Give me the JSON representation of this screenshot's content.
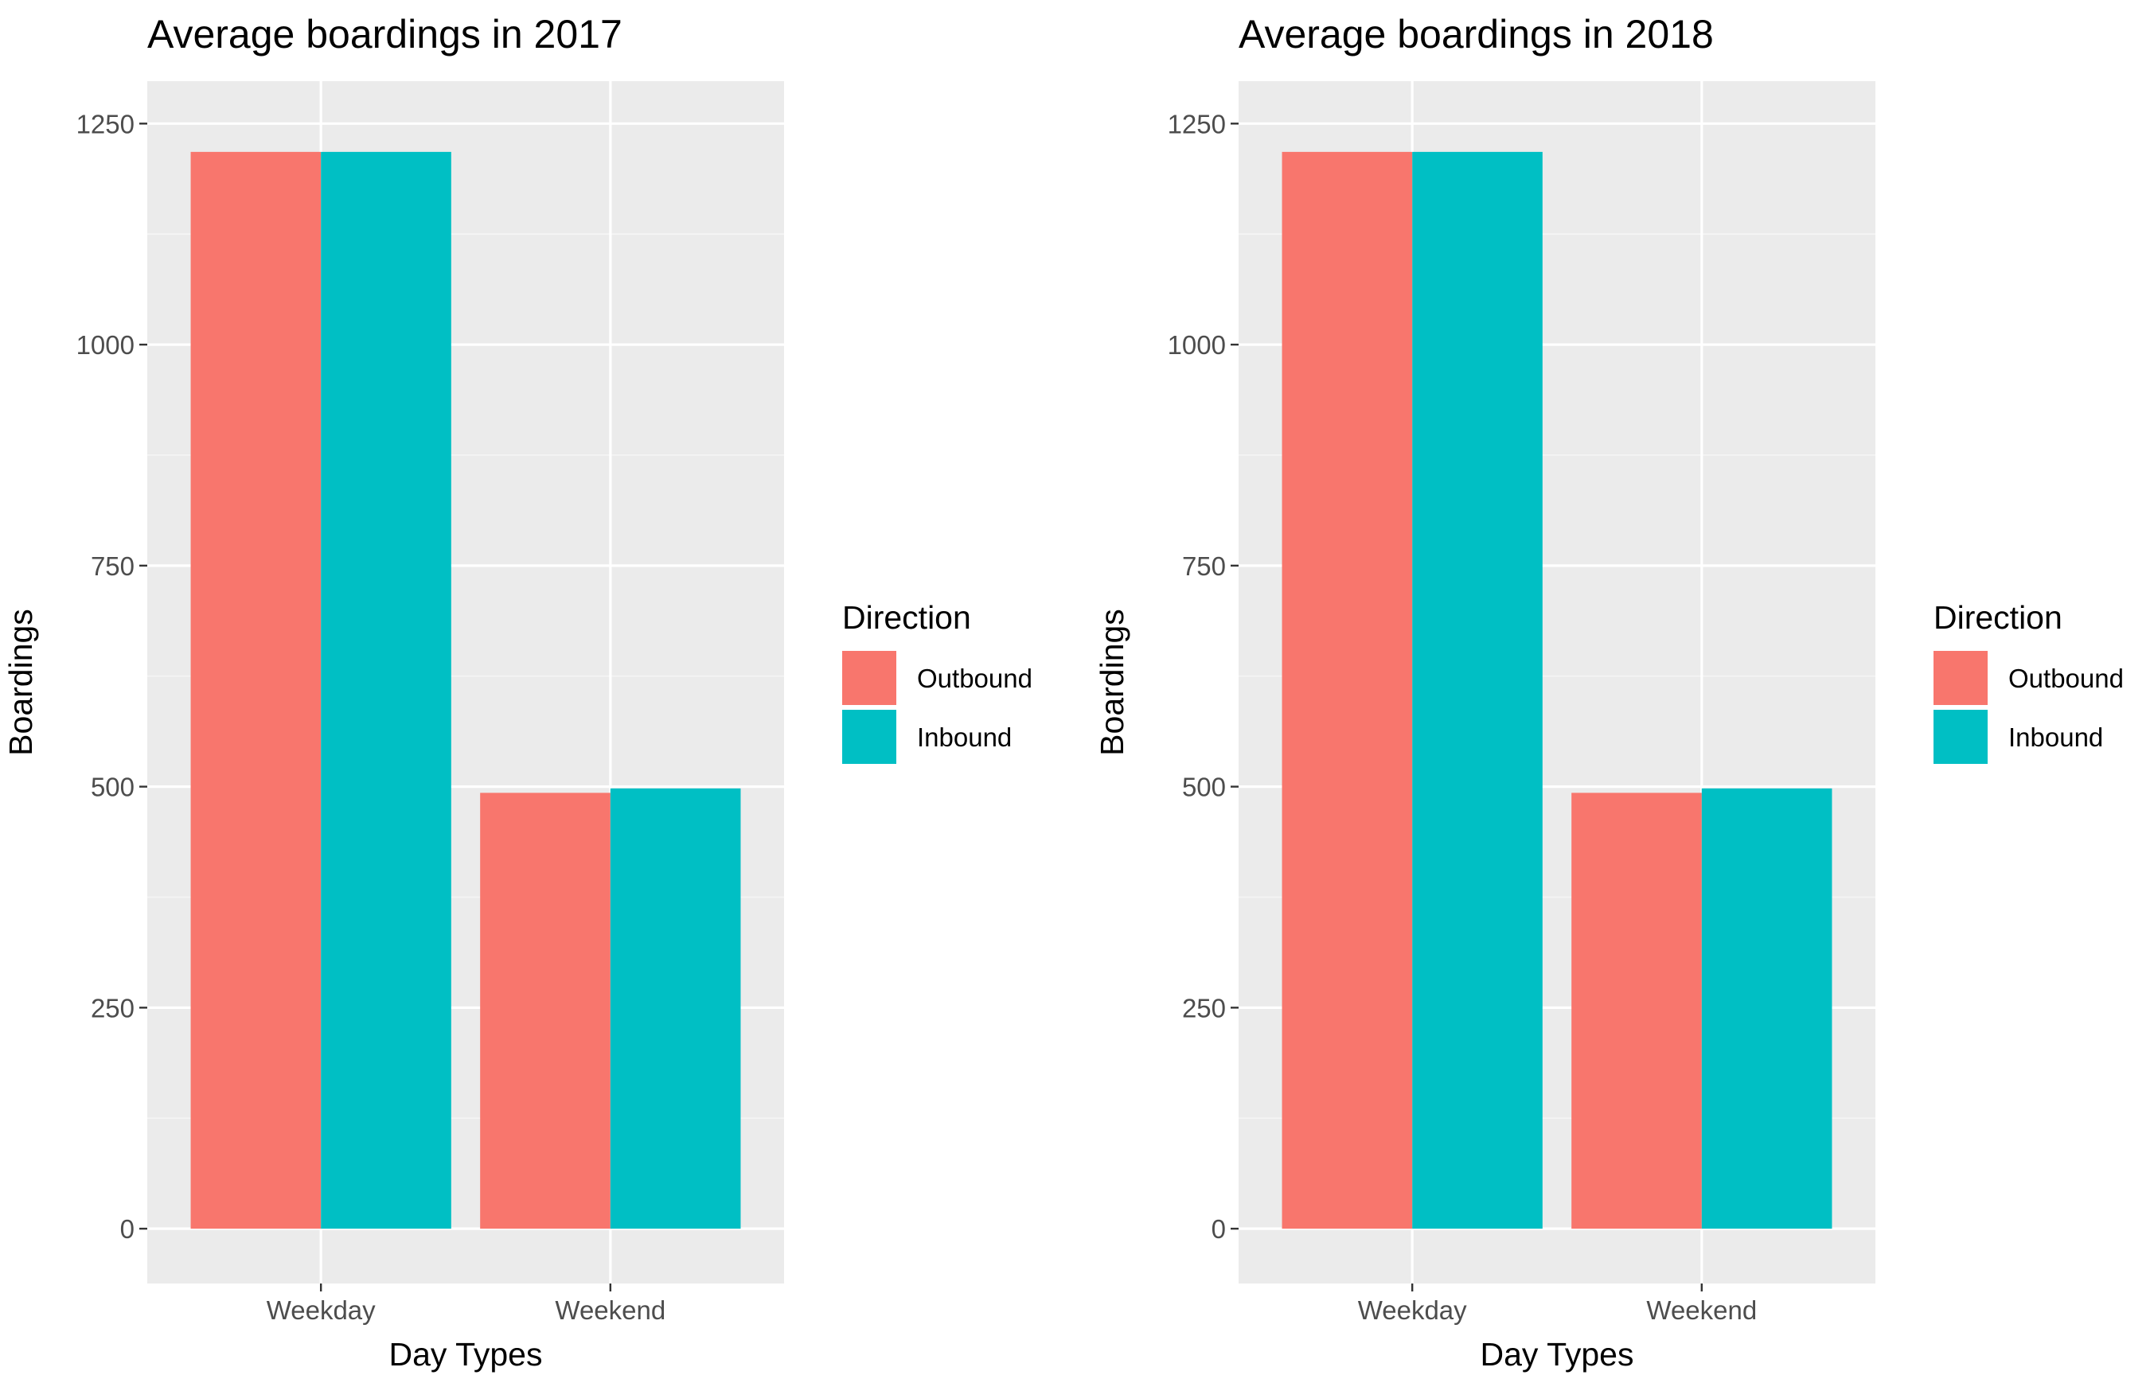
{
  "chart_data": [
    {
      "type": "bar",
      "title": "Average boardings in 2017",
      "xlabel": "Day Types",
      "ylabel": "Boardings",
      "categories": [
        "Weekday",
        "Weekend"
      ],
      "series": [
        {
          "name": "Outbound",
          "values": [
            1218,
            493
          ],
          "color": "#F8766D"
        },
        {
          "name": "Inbound",
          "values": [
            1218,
            498
          ],
          "color": "#00BFC4"
        }
      ],
      "ylim": [
        -62,
        1298
      ],
      "yticks": [
        0,
        250,
        500,
        750,
        1000,
        1250
      ],
      "ytick_labels": [
        "0",
        "250",
        "500",
        "750",
        "1000",
        "1250"
      ],
      "grid": true,
      "legend": {
        "title": "Direction",
        "position": "right"
      }
    },
    {
      "type": "bar",
      "title": "Average boardings in 2018",
      "xlabel": "Day Types",
      "ylabel": "Boardings",
      "categories": [
        "Weekday",
        "Weekend"
      ],
      "series": [
        {
          "name": "Outbound",
          "values": [
            1218,
            493
          ],
          "color": "#F8766D"
        },
        {
          "name": "Inbound",
          "values": [
            1218,
            498
          ],
          "color": "#00BFC4"
        }
      ],
      "ylim": [
        -62,
        1298
      ],
      "yticks": [
        0,
        250,
        500,
        750,
        1000,
        1250
      ],
      "ytick_labels": [
        "0",
        "250",
        "500",
        "750",
        "1000",
        "1250"
      ],
      "grid": true,
      "legend": {
        "title": "Direction",
        "position": "right"
      }
    }
  ],
  "style": {
    "panel_background": "#EBEBEB",
    "grid_major_color": "#FFFFFF",
    "grid_minor_color": "#F5F5F5",
    "tick_text_color": "#4D4D4D",
    "tick_mark_color": "#333333"
  }
}
